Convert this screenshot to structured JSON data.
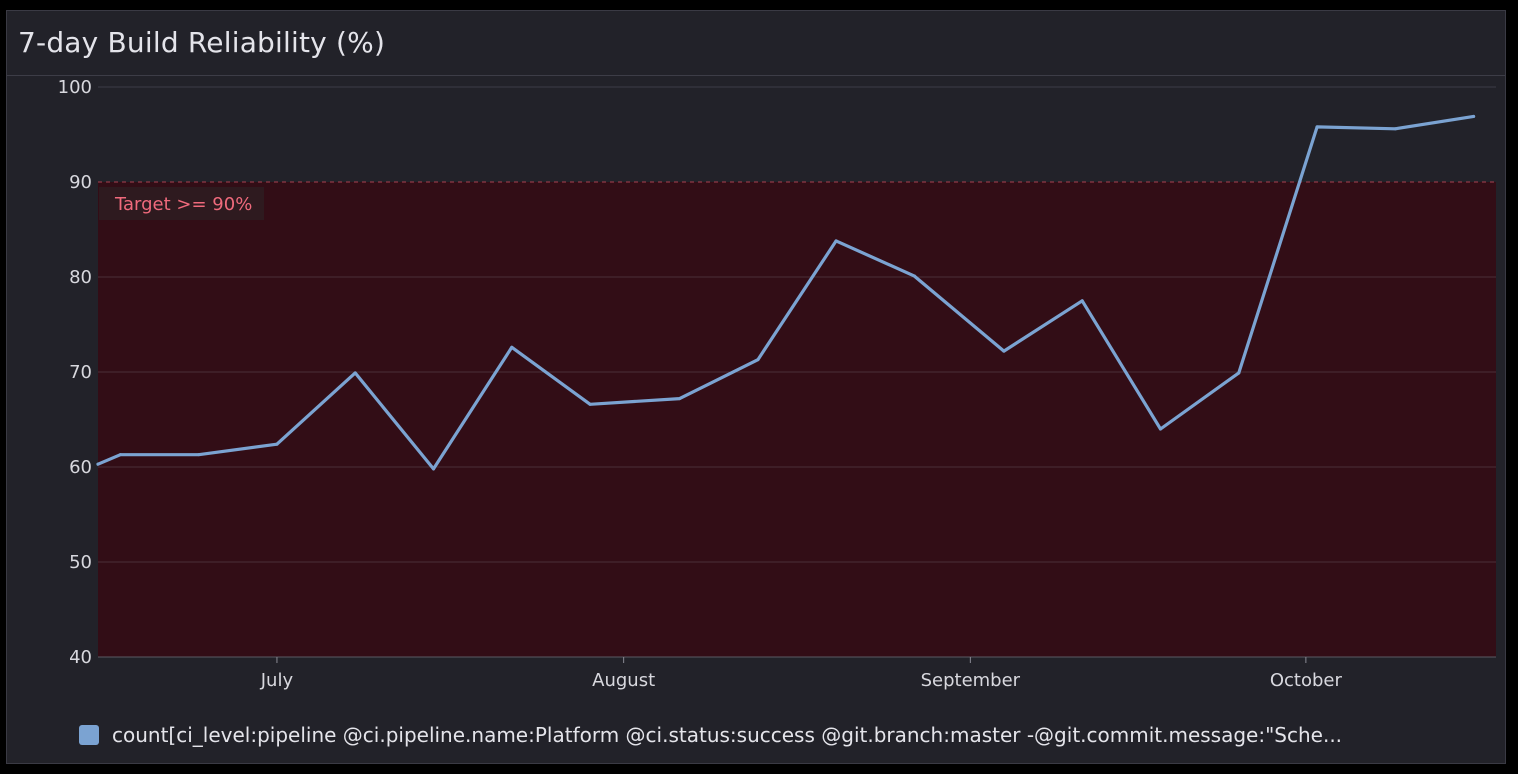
{
  "panel": {
    "title": "7-day Build Reliability (%)"
  },
  "colors": {
    "series": "#7ba3d2",
    "target_band_fill": "#320d16",
    "target_line": "#8e3a47",
    "target_label_text": "#f06a7c",
    "target_label_bg": "#2e1a1f",
    "grid": "#4a3038",
    "panel_bg": "#222229"
  },
  "legend": {
    "label": "count[ci_level:pipeline @ci.pipeline.name:Platform @ci.status:success @git.branch:master -@git.commit.message:\"Sche..."
  },
  "chart_data": {
    "type": "line",
    "title": "7-day Build Reliability (%)",
    "xlabel": "",
    "ylabel": "",
    "ylim": [
      40,
      100
    ],
    "yticks": [
      40,
      50,
      60,
      70,
      80,
      90,
      100
    ],
    "xlim": [
      "2023-06-15",
      "2023-10-18"
    ],
    "xticks": [
      {
        "date": "2023-07-01",
        "label": "July"
      },
      {
        "date": "2023-08-01",
        "label": "August"
      },
      {
        "date": "2023-09-01",
        "label": "September"
      },
      {
        "date": "2023-10-01",
        "label": "October"
      }
    ],
    "grid": true,
    "legend_position": "bottom-left",
    "target": {
      "value": 90,
      "label": "Target >= 90%"
    },
    "series": [
      {
        "name": "count[ci_level:pipeline @ci.pipeline.name:Platform @ci.status:success @git.branch:master -@git.commit.message:\"Sche...",
        "x": [
          "2023-06-15",
          "2023-06-17",
          "2023-06-24",
          "2023-07-01",
          "2023-07-08",
          "2023-07-15",
          "2023-07-22",
          "2023-07-29",
          "2023-08-06",
          "2023-08-13",
          "2023-08-20",
          "2023-08-27",
          "2023-09-04",
          "2023-09-11",
          "2023-09-18",
          "2023-09-25",
          "2023-10-02",
          "2023-10-09",
          "2023-10-16"
        ],
        "y": [
          60.3,
          61.3,
          61.3,
          62.4,
          69.9,
          59.8,
          72.6,
          66.6,
          67.2,
          71.3,
          83.8,
          80.1,
          72.2,
          77.5,
          64.0,
          69.9,
          95.8,
          95.6,
          96.9
        ]
      }
    ]
  }
}
